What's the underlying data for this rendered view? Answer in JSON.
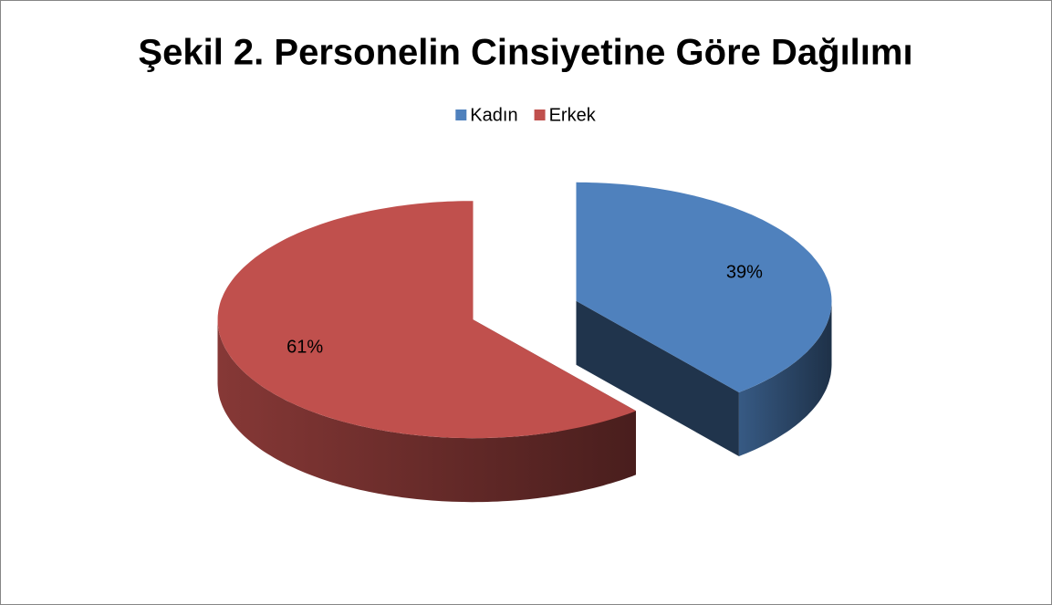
{
  "chart_data": {
    "type": "pie3d",
    "title": "Şekil 2. Personelin Cinsiyetine Göre Dağılımı",
    "categories": [
      "Kadın",
      "Erkek"
    ],
    "values": [
      39,
      61
    ],
    "value_labels": [
      "39%",
      "61%"
    ],
    "colors": [
      "#4f81bd",
      "#c0504d"
    ],
    "legend": "top"
  }
}
